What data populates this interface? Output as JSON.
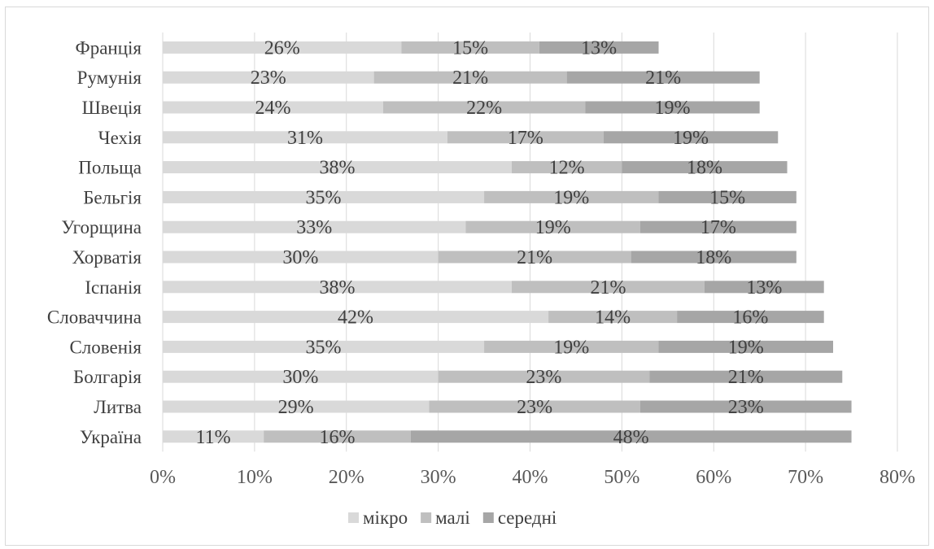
{
  "chart_data": {
    "type": "bar",
    "orientation": "horizontal",
    "stacked": true,
    "title": "",
    "xlabel": "",
    "ylabel": "",
    "xlim": [
      0,
      80
    ],
    "x_ticks": [
      "0%",
      "10%",
      "20%",
      "30%",
      "40%",
      "50%",
      "60%",
      "70%",
      "80%"
    ],
    "grid": "vertical",
    "legend_position": "bottom",
    "categories": [
      "Франція",
      "Румунія",
      "Швеція",
      "Чехія",
      "Польща",
      "Бельгія",
      "Угорщина",
      "Хорватія",
      "Іспанія",
      "Словаччина",
      "Словенія",
      "Болгарія",
      "Литва",
      "Україна"
    ],
    "series": [
      {
        "name": "мікро",
        "color": "#d9d9d9",
        "values": [
          26,
          23,
          24,
          31,
          38,
          35,
          33,
          30,
          38,
          42,
          35,
          30,
          29,
          11
        ]
      },
      {
        "name": "малі",
        "color": "#bfbfbf",
        "values": [
          15,
          21,
          22,
          17,
          12,
          19,
          19,
          21,
          21,
          14,
          19,
          23,
          23,
          16
        ]
      },
      {
        "name": "середні",
        "color": "#a6a6a6",
        "values": [
          13,
          21,
          19,
          19,
          18,
          15,
          17,
          18,
          13,
          16,
          19,
          21,
          23,
          48
        ]
      }
    ]
  }
}
